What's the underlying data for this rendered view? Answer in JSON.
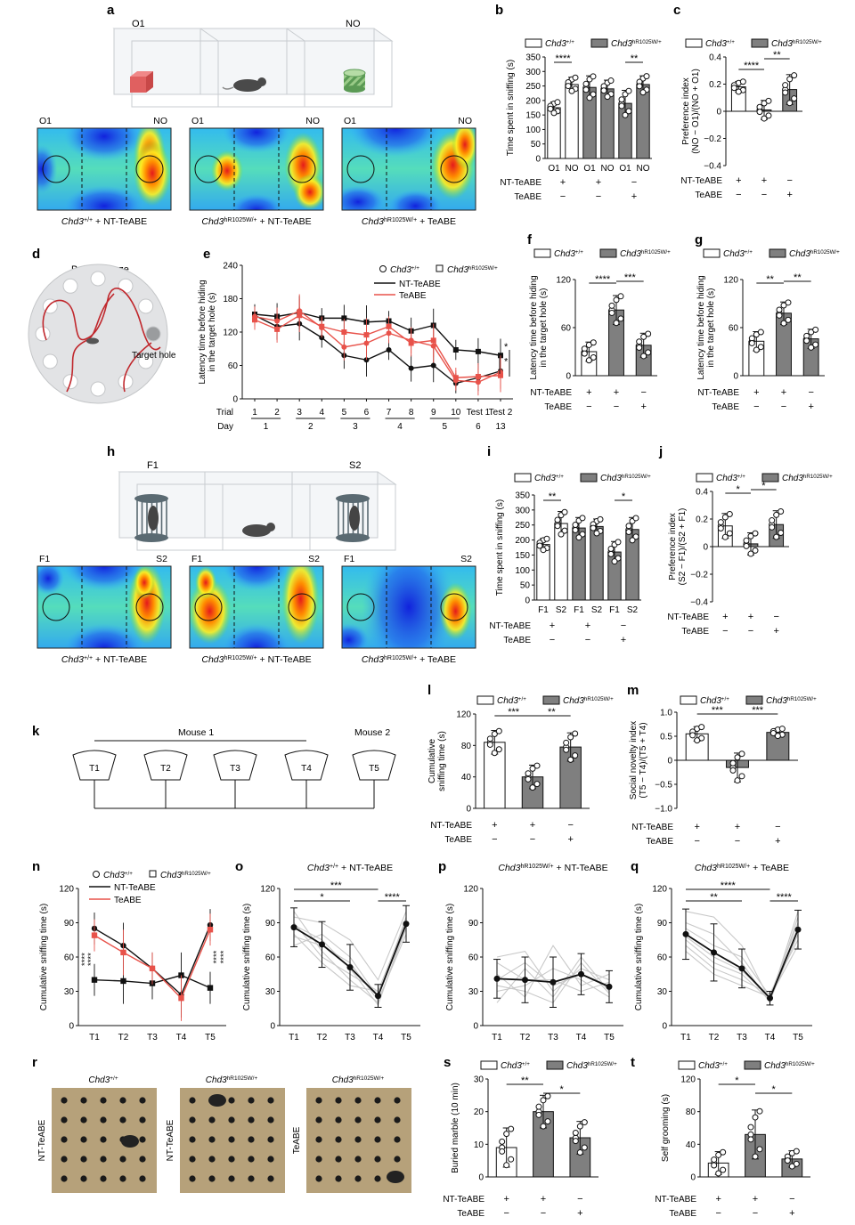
{
  "panel_letters": [
    "a",
    "b",
    "c",
    "d",
    "e",
    "f",
    "g",
    "h",
    "i",
    "j",
    "k",
    "l",
    "m",
    "n",
    "o",
    "p",
    "q",
    "r",
    "s",
    "t"
  ],
  "genotypes": {
    "wt": "Chd3",
    "wt_sup": "+/+",
    "mut": "Chd3",
    "mut_sup": "hR1025W/+"
  },
  "treat": {
    "nt": "NT-TeABE",
    "te": "TeABE"
  },
  "pm": [
    "+",
    "+",
    "−"
  ],
  "pm2": [
    "−",
    "−",
    "+"
  ],
  "panel_a": {
    "labels": [
      "O1",
      "NO"
    ],
    "captions": [
      "Chd3+/+ + NT-TeABE",
      "Chd3hR1025W/+ + NT-TeABE",
      "Chd3hR1025W/+ + TeABE"
    ]
  },
  "panel_d": {
    "title": "Barnes maze",
    "target": "Target hole"
  },
  "panel_h": {
    "labels": [
      "F1",
      "S2"
    ],
    "captions": [
      "Chd3+/+ + NT-TeABE",
      "Chd3hR1025W/+ + NT-TeABE",
      "Chd3hR1025W/+ + TeABE"
    ]
  },
  "panel_k": {
    "mouse1": "Mouse 1",
    "mouse2": "Mouse 2",
    "trials": [
      "T1",
      "T2",
      "T3",
      "T4",
      "T5"
    ]
  },
  "panel_r": {
    "col_titles": [
      "Chd3+/+",
      "Chd3hR1025W/+",
      "Chd3hR1025W/+"
    ],
    "row_labels": [
      "NT-TeABE",
      "NT-TeABE",
      "TeABE"
    ]
  },
  "colors": {
    "grey": "#7f7f7f",
    "red": "#e8524a",
    "black": "#111111",
    "light": "#c8c8c8"
  },
  "chart_data": [
    {
      "id": "b",
      "type": "bar",
      "ylabel": "Time spent in sniffing (s)",
      "categories": [
        "O1",
        "NO",
        "O1",
        "NO",
        "O1",
        "NO"
      ],
      "yticks": [
        "0",
        "50",
        "100",
        "150",
        "200",
        "250",
        "300",
        "350"
      ],
      "ylim": [
        0,
        350
      ],
      "values": [
        175,
        255,
        245,
        240,
        190,
        255
      ],
      "errors": [
        20,
        25,
        40,
        30,
        45,
        30
      ],
      "fills": [
        "w",
        "w",
        "g",
        "g",
        "g",
        "g"
      ],
      "row_labels": [
        "NT-TeABE",
        "TeABE"
      ],
      "signs_row1": [
        "+",
        "+",
        "−"
      ],
      "signs_row2": [
        "−",
        "−",
        "+"
      ],
      "sig": [
        {
          "between": [
            0,
            1
          ],
          "label": "****"
        },
        {
          "between": [
            4,
            5
          ],
          "label": "**"
        }
      ]
    },
    {
      "id": "c",
      "type": "bar",
      "ylabel": "Preference index (NO − O1)/(NO + O1)",
      "yticks": [
        "−0.4",
        "−0.2",
        "0",
        "0.2",
        "0.4"
      ],
      "ylim": [
        -0.4,
        0.4
      ],
      "values": [
        0.18,
        0.01,
        0.16
      ],
      "errors": [
        0.04,
        0.07,
        0.11
      ],
      "fills": [
        "w",
        "g",
        "g"
      ],
      "row_labels": [
        "NT-TeABE",
        "TeABE"
      ],
      "signs_row1": [
        "+",
        "+",
        "−"
      ],
      "signs_row2": [
        "−",
        "−",
        "+"
      ],
      "sig": [
        {
          "between": [
            0,
            1
          ],
          "label": "****"
        },
        {
          "between": [
            1,
            2
          ],
          "label": "**"
        }
      ]
    },
    {
      "id": "e",
      "type": "line",
      "ylabel": "Latency time before hiding in the target hole (s)",
      "yticks": [
        "0",
        "60",
        "120",
        "180",
        "240"
      ],
      "ylim": [
        0,
        240
      ],
      "trial_labels": [
        "1",
        "2",
        "3",
        "4",
        "5",
        "6",
        "7",
        "8",
        "9",
        "10",
        "Test 1",
        "Test 2"
      ],
      "day_labels": [
        "1",
        "2",
        "3",
        "4",
        "5",
        "6",
        "13"
      ],
      "xrow_labels": [
        "Trial",
        "Day"
      ],
      "legend": [
        "NT-TeABE",
        "TeABE"
      ],
      "series": [
        {
          "name": "Chd3+/+ NT-TeABE",
          "values": [
            150,
            130,
            135,
            110,
            78,
            70,
            88,
            55,
            60,
            28,
            38,
            50
          ],
          "color": "black",
          "marker": "circle"
        },
        {
          "name": "Chd3hR1025W/+ NT-TeABE",
          "values": [
            152,
            148,
            155,
            145,
            145,
            138,
            140,
            122,
            132,
            88,
            85,
            78
          ],
          "color": "black",
          "marker": "square"
        },
        {
          "name": "Chd3+/+ TeABE",
          "values": [
            148,
            140,
            158,
            128,
            93,
            100,
            118,
            105,
            95,
            33,
            30,
            48
          ],
          "color": "red",
          "marker": "circle"
        },
        {
          "name": "Chd3hR1025W/+ TeABE",
          "values": [
            142,
            125,
            150,
            130,
            120,
            115,
            130,
            100,
            105,
            38,
            40,
            42
          ],
          "color": "red",
          "marker": "square"
        }
      ],
      "sig": [
        "*",
        "*"
      ]
    },
    {
      "id": "f",
      "type": "bar",
      "ylabel": "Latency time before hiding in the target hole (s)",
      "yticks": [
        "0",
        "60",
        "120"
      ],
      "ylim": [
        0,
        120
      ],
      "values": [
        30,
        82,
        38
      ],
      "errors": [
        12,
        18,
        15
      ],
      "fills": [
        "w",
        "g",
        "g"
      ],
      "row_labels": [
        "NT-TeABE",
        "TeABE"
      ],
      "signs_row1": [
        "+",
        "+",
        "−"
      ],
      "signs_row2": [
        "−",
        "−",
        "+"
      ],
      "sig": [
        {
          "between": [
            0,
            1
          ],
          "label": "****"
        },
        {
          "between": [
            1,
            2
          ],
          "label": "***"
        }
      ]
    },
    {
      "id": "g",
      "type": "bar",
      "ylabel": "Latency time before hiding in the target hole (s)",
      "yticks": [
        "0",
        "60",
        "120"
      ],
      "ylim": [
        0,
        120
      ],
      "values": [
        43,
        78,
        46
      ],
      "errors": [
        12,
        14,
        12
      ],
      "fills": [
        "w",
        "g",
        "g"
      ],
      "row_labels": [
        "NT-TeABE",
        "TeABE"
      ],
      "signs_row1": [
        "+",
        "+",
        "−"
      ],
      "signs_row2": [
        "−",
        "−",
        "+"
      ],
      "sig": [
        {
          "between": [
            0,
            1
          ],
          "label": "**"
        },
        {
          "between": [
            1,
            2
          ],
          "label": "**"
        }
      ]
    },
    {
      "id": "i",
      "type": "bar",
      "ylabel": "Time spent in sniffing (s)",
      "categories": [
        "F1",
        "S2",
        "F1",
        "S2",
        "F1",
        "S2"
      ],
      "yticks": [
        "0",
        "50",
        "100",
        "150",
        "200",
        "250",
        "300",
        "350"
      ],
      "ylim": [
        0,
        350
      ],
      "values": [
        185,
        255,
        240,
        245,
        160,
        235
      ],
      "errors": [
        20,
        40,
        35,
        25,
        35,
        40
      ],
      "fills": [
        "w",
        "w",
        "g",
        "g",
        "g",
        "g"
      ],
      "row_labels": [
        "NT-TeABE",
        "TeABE"
      ],
      "signs_row1": [
        "+",
        "+",
        "−"
      ],
      "signs_row2": [
        "−",
        "−",
        "+"
      ],
      "sig": [
        {
          "between": [
            0,
            1
          ],
          "label": "**"
        },
        {
          "between": [
            4,
            5
          ],
          "label": "*"
        }
      ]
    },
    {
      "id": "j",
      "type": "bar",
      "ylabel": "Preference index (S2 − F1)/(S2 + F1)",
      "yticks": [
        "−0.4",
        "−0.2",
        "0",
        "0.2",
        "0.4"
      ],
      "ylim": [
        -0.4,
        0.4
      ],
      "values": [
        0.15,
        0.02,
        0.16
      ],
      "errors": [
        0.09,
        0.08,
        0.1
      ],
      "fills": [
        "w",
        "g",
        "g"
      ],
      "row_labels": [
        "NT-TeABE",
        "TeABE"
      ],
      "signs_row1": [
        "+",
        "+",
        "−"
      ],
      "signs_row2": [
        "−",
        "−",
        "+"
      ],
      "sig": [
        {
          "between": [
            0,
            1
          ],
          "label": "*"
        },
        {
          "between": [
            1,
            2
          ],
          "label": "*"
        }
      ]
    },
    {
      "id": "l",
      "type": "bar",
      "ylabel": "Cumulative sniffing time (s)",
      "yticks": [
        "0",
        "40",
        "80",
        "120"
      ],
      "ylim": [
        0,
        120
      ],
      "values": [
        84,
        40,
        78
      ],
      "errors": [
        15,
        15,
        18
      ],
      "fills": [
        "w",
        "g",
        "g"
      ],
      "row_labels": [
        "NT-TeABE",
        "TeABE"
      ],
      "signs_row1": [
        "+",
        "+",
        "−"
      ],
      "signs_row2": [
        "−",
        "−",
        "+"
      ],
      "sig": [
        {
          "between": [
            0,
            1
          ],
          "label": "***"
        },
        {
          "between": [
            1,
            2
          ],
          "label": "**"
        }
      ]
    },
    {
      "id": "m",
      "type": "bar",
      "ylabel": "Social novelty index (T5 − T4)/(T5 + T4)",
      "yticks": [
        "−1.0",
        "−0.5",
        "0",
        "0.5",
        "1.0"
      ],
      "ylim": [
        -1.0,
        1.0
      ],
      "values": [
        0.55,
        -0.15,
        0.58
      ],
      "errors": [
        0.15,
        0.3,
        0.08
      ],
      "fills": [
        "w",
        "g",
        "g"
      ],
      "row_labels": [
        "NT-TeABE",
        "TeABE"
      ],
      "signs_row1": [
        "+",
        "+",
        "−"
      ],
      "signs_row2": [
        "−",
        "−",
        "+"
      ],
      "sig": [
        {
          "between": [
            0,
            1
          ],
          "label": "***"
        },
        {
          "between": [
            1,
            2
          ],
          "label": "***"
        }
      ]
    },
    {
      "id": "n",
      "type": "line",
      "ylabel": "Cumulative sniffing time (s)",
      "categories": [
        "T1",
        "T2",
        "T3",
        "T4",
        "T5"
      ],
      "yticks": [
        "0",
        "30",
        "60",
        "90",
        "120"
      ],
      "ylim": [
        0,
        120
      ],
      "legend": [
        "NT-TeABE",
        "TeABE"
      ],
      "series": [
        {
          "name": "Chd3+/+ NT-TeABE",
          "values": [
            85,
            70,
            50,
            27,
            88
          ],
          "color": "black",
          "marker": "circle"
        },
        {
          "name": "Chd3hR1025W/+ NT-TeABE",
          "values": [
            40,
            39,
            37,
            44,
            33
          ],
          "color": "black",
          "marker": "square"
        },
        {
          "name": "Chd3hR1025W/+ TeABE",
          "values": [
            79,
            64,
            50,
            24,
            84
          ],
          "color": "red",
          "marker": "square"
        }
      ],
      "sig_left": [
        "****",
        "****"
      ],
      "sig_right": [
        "****",
        "****"
      ]
    },
    {
      "id": "o",
      "type": "line",
      "title": "Chd3+/+ + NT-TeABE",
      "categories": [
        "T1",
        "T2",
        "T3",
        "T4",
        "T5"
      ],
      "ylabel": "Cumulative sniffing time (s)",
      "yticks": [
        "0",
        "30",
        "60",
        "90",
        "120"
      ],
      "ylim": [
        0,
        120
      ],
      "mean": [
        86,
        71,
        51,
        26,
        89
      ],
      "err": [
        17,
        20,
        20,
        10,
        16
      ],
      "individual": [
        [
          95,
          90,
          75,
          40,
          100
        ],
        [
          78,
          70,
          55,
          22,
          80
        ],
        [
          90,
          60,
          45,
          30,
          92
        ],
        [
          70,
          80,
          60,
          25,
          95
        ],
        [
          100,
          65,
          40,
          20,
          85
        ],
        [
          80,
          55,
          35,
          30,
          90
        ],
        [
          88,
          75,
          50,
          18,
          88
        ]
      ],
      "sig": [
        {
          "between": [
            0,
            2
          ],
          "label": "*"
        },
        {
          "between": [
            0,
            3
          ],
          "label": "***"
        },
        {
          "between": [
            3,
            4
          ],
          "label": "****"
        }
      ]
    },
    {
      "id": "p",
      "type": "line",
      "title": "Chd3hR1025W/+ + NT-TeABE",
      "categories": [
        "T1",
        "T2",
        "T3",
        "T4",
        "T5"
      ],
      "ylabel": "Cumulative sniffing time (s)",
      "yticks": [
        "0",
        "30",
        "60",
        "90",
        "120"
      ],
      "ylim": [
        0,
        120
      ],
      "mean": [
        41,
        40,
        38,
        45,
        34
      ],
      "err": [
        17,
        20,
        22,
        18,
        14
      ],
      "individual": [
        [
          60,
          65,
          30,
          50,
          40
        ],
        [
          30,
          35,
          50,
          40,
          25
        ],
        [
          45,
          25,
          70,
          35,
          45
        ],
        [
          20,
          50,
          25,
          60,
          30
        ],
        [
          55,
          40,
          40,
          30,
          38
        ],
        [
          35,
          30,
          20,
          55,
          28
        ],
        [
          40,
          55,
          35,
          45,
          35
        ]
      ],
      "sig": []
    },
    {
      "id": "q",
      "type": "line",
      "title": "Chd3hR1025W/+ + TeABE",
      "categories": [
        "T1",
        "T2",
        "T3",
        "T4",
        "T5"
      ],
      "ylabel": "Cumulative sniffing time (s)",
      "yticks": [
        "0",
        "30",
        "60",
        "90",
        "120"
      ],
      "ylim": [
        0,
        120
      ],
      "mean": [
        80,
        64,
        50,
        24,
        84
      ],
      "err": [
        22,
        25,
        17,
        6,
        17
      ],
      "individual": [
        [
          100,
          95,
          70,
          22,
          100
        ],
        [
          70,
          50,
          40,
          28,
          75
        ],
        [
          90,
          80,
          55,
          20,
          95
        ],
        [
          65,
          45,
          35,
          25,
          70
        ],
        [
          85,
          70,
          60,
          26,
          90
        ],
        [
          75,
          55,
          45,
          22,
          80
        ],
        [
          78,
          60,
          48,
          25,
          85
        ]
      ],
      "sig": [
        {
          "between": [
            0,
            2
          ],
          "label": "**"
        },
        {
          "between": [
            0,
            3
          ],
          "label": "****"
        },
        {
          "between": [
            3,
            4
          ],
          "label": "****"
        }
      ]
    },
    {
      "id": "s",
      "type": "bar",
      "ylabel": "Buried marble (10 min)",
      "yticks": [
        "0",
        "10",
        "20",
        "30"
      ],
      "ylim": [
        0,
        30
      ],
      "values": [
        9,
        20,
        12
      ],
      "errors": [
        6,
        5,
        5
      ],
      "fills": [
        "w",
        "g",
        "g"
      ],
      "row_labels": [
        "NT-TeABE",
        "TeABE"
      ],
      "signs_row1": [
        "+",
        "+",
        "−"
      ],
      "signs_row2": [
        "−",
        "−",
        "+"
      ],
      "sig": [
        {
          "between": [
            0,
            1
          ],
          "label": "**"
        },
        {
          "between": [
            1,
            2
          ],
          "label": "*"
        }
      ]
    },
    {
      "id": "t",
      "type": "bar",
      "ylabel": "Self grooming (s)",
      "yticks": [
        "0",
        "40",
        "80",
        "120"
      ],
      "ylim": [
        0,
        120
      ],
      "values": [
        17,
        52,
        22
      ],
      "errors": [
        14,
        30,
        10
      ],
      "fills": [
        "w",
        "g",
        "g"
      ],
      "row_labels": [
        "NT-TeABE",
        "TeABE"
      ],
      "signs_row1": [
        "+",
        "+",
        "−"
      ],
      "signs_row2": [
        "−",
        "−",
        "+"
      ],
      "sig": [
        {
          "between": [
            0,
            1
          ],
          "label": "*"
        },
        {
          "between": [
            1,
            2
          ],
          "label": "*"
        }
      ]
    }
  ]
}
